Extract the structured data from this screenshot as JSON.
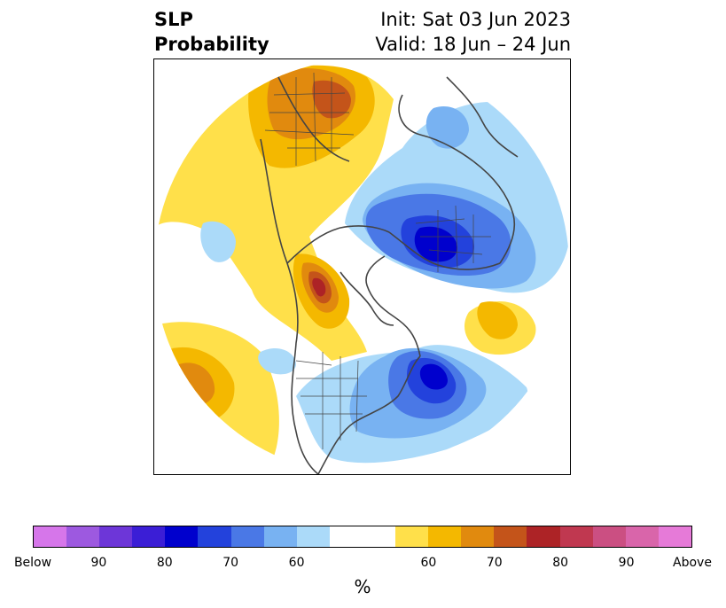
{
  "title": {
    "left_line1": "SLP",
    "left_line2": "Probability",
    "right_line1": "Init: Sat 03 Jun 2023",
    "right_line2": "Valid: 18 Jun – 24 Jun"
  },
  "colorbar": {
    "colors": [
      "#d676ea",
      "#9d59e0",
      "#6d36d8",
      "#3b1ed6",
      "#0000cd",
      "#2342dc",
      "#4a78e6",
      "#78b2f2",
      "#abdaf9",
      "#ffffff",
      "#ffffff",
      "#ffe04a",
      "#f4b800",
      "#e18a0e",
      "#c4541a",
      "#ad2326",
      "#c03850",
      "#cb4f82",
      "#d965aa",
      "#e67ad8"
    ],
    "ticks": [
      "Below",
      "90",
      "80",
      "70",
      "60",
      "60",
      "70",
      "80",
      "90",
      "Above"
    ],
    "unit": "%"
  },
  "map": {
    "colors": {
      "above_60": "#ffe04a",
      "above_65": "#f4b800",
      "above_70": "#e18a0e",
      "above_75": "#c4541a",
      "above_80": "#ad2326",
      "below_60": "#abdaf9",
      "below_65": "#78b2f2",
      "below_70": "#4a78e6",
      "below_75": "#2342dc",
      "below_80": "#0000cd",
      "coast": "#444444"
    }
  }
}
